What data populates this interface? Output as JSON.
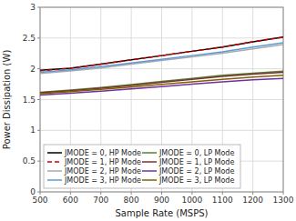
{
  "chart_data": {
    "type": "line",
    "x": [
      500,
      600,
      700,
      800,
      900,
      1000,
      1100,
      1200,
      1300
    ],
    "series": [
      {
        "name": "JMODE = 0, HP Mode",
        "color": "#000000",
        "line_style": "solid",
        "values": [
          1.975,
          2.01,
          2.075,
          2.145,
          2.215,
          2.285,
          2.355,
          2.44,
          2.515
        ]
      },
      {
        "name": "JMODE = 1, HP Mode",
        "color": "#cc0000",
        "line_style": "dashed",
        "values": [
          1.965,
          2.01,
          2.075,
          2.145,
          2.215,
          2.285,
          2.355,
          2.44,
          2.515
        ]
      },
      {
        "name": "JMODE = 2, HP Mode",
        "color": "#aaaaaa",
        "line_style": "solid",
        "values": [
          1.925,
          1.965,
          2.015,
          2.075,
          2.135,
          2.195,
          2.255,
          2.325,
          2.395
        ]
      },
      {
        "name": "JMODE = 3, HP Mode",
        "color": "#5b9bd5",
        "line_style": "solid",
        "values": [
          1.945,
          1.985,
          2.035,
          2.095,
          2.155,
          2.215,
          2.275,
          2.355,
          2.425
        ]
      },
      {
        "name": "JMODE = 0, LP Mode",
        "color": "#548235",
        "line_style": "solid",
        "values": [
          1.62,
          1.655,
          1.695,
          1.745,
          1.795,
          1.845,
          1.895,
          1.93,
          1.96
        ]
      },
      {
        "name": "JMODE = 1, LP Mode",
        "color": "#7b3030",
        "line_style": "solid",
        "values": [
          1.61,
          1.645,
          1.685,
          1.73,
          1.78,
          1.828,
          1.878,
          1.912,
          1.942
        ]
      },
      {
        "name": "JMODE = 2, LP Mode",
        "color": "#7030a0",
        "line_style": "solid",
        "values": [
          1.575,
          1.605,
          1.635,
          1.672,
          1.712,
          1.752,
          1.79,
          1.82,
          1.845
        ]
      },
      {
        "name": "JMODE = 3, LP Mode",
        "color": "#7f6000",
        "line_style": "solid",
        "values": [
          1.595,
          1.628,
          1.665,
          1.705,
          1.748,
          1.79,
          1.83,
          1.865,
          1.895
        ]
      }
    ],
    "xlabel": "Sample Rate (MSPS)",
    "ylabel": "Power Dissipation (W)",
    "xlim": [
      500,
      1300
    ],
    "ylim": [
      0,
      3
    ],
    "xticks": [
      500,
      600,
      700,
      800,
      900,
      1000,
      1100,
      1200,
      1300
    ],
    "yticks": [
      0,
      0.5,
      1,
      1.5,
      2,
      2.5,
      3
    ],
    "grid": true,
    "legend": "lower-left"
  }
}
